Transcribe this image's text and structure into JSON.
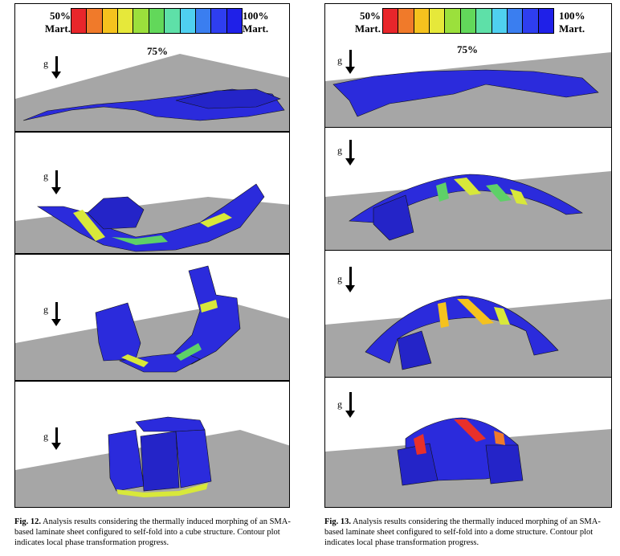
{
  "colorbar": {
    "left_label_1": "50%",
    "left_label_2": "Mart.",
    "right_label_1": "100%",
    "right_label_2": "Mart.",
    "mid_label": "75%",
    "colors": [
      "#e8262b",
      "#f07a2a",
      "#f5c21e",
      "#e6e83a",
      "#9be03c",
      "#62d85a",
      "#5ee0a8",
      "#4fd0f0",
      "#3a7ef0",
      "#2e3ef0",
      "#1f20e8"
    ]
  },
  "gravity_label": "g",
  "colors": {
    "sheet": "#2b2bdc",
    "ground": "#a6a6a6",
    "fold_yellow": "#d8e83a",
    "fold_green": "#5ed068",
    "fold_red": "#e8302a"
  },
  "captions": {
    "fig12_label": "Fig. 12.",
    "fig12_text": " Analysis results considering the thermally induced morphing of an SMA-based laminate sheet configured to self-fold into a cube structure. Contour plot indicates local phase transformation progress.",
    "fig13_label": "Fig. 13.",
    "fig13_text": " Analysis results considering the thermally induced morphing of an SMA-based laminate sheet configured to self-fold into a dome structure. Contour plot indicates local phase transformation progress."
  }
}
